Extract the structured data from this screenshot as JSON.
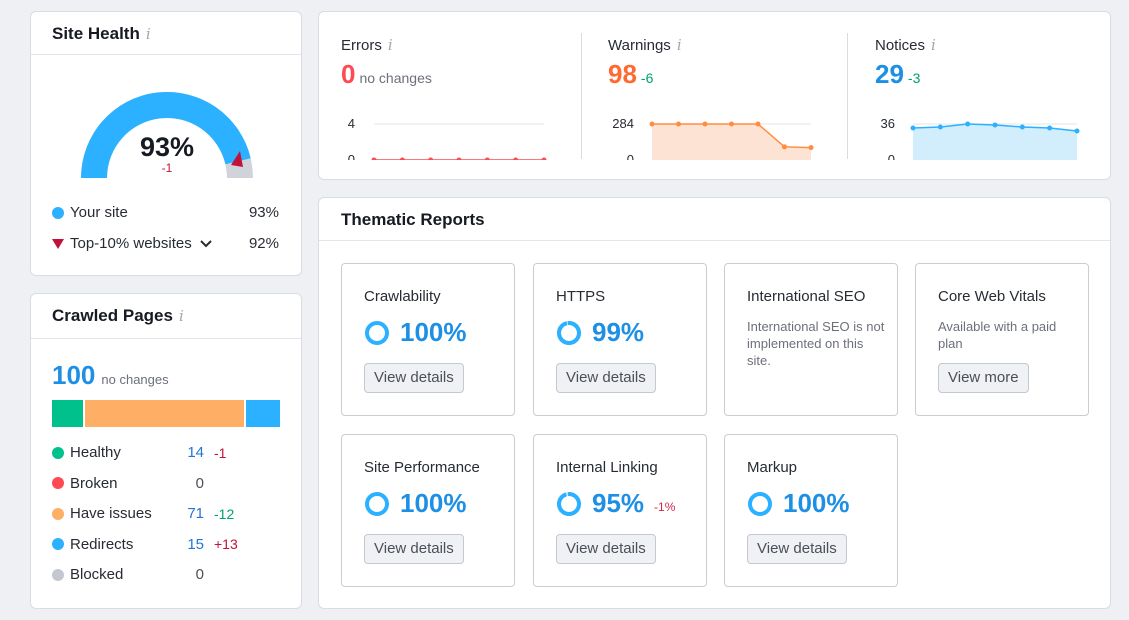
{
  "site_health": {
    "title": "Site Health",
    "percent": "93%",
    "change": "-1",
    "legend": [
      {
        "label": "Your site",
        "value": "93%",
        "color": "#2bb1ff"
      },
      {
        "label": "Top-10% websites",
        "value": "92%",
        "color": "#c1123a"
      }
    ]
  },
  "crawled_pages": {
    "title": "Crawled Pages",
    "total": "100",
    "total_change": "no changes",
    "bar": [
      {
        "name": "Healthy",
        "fraction": 0.14,
        "color": "#00c08b"
      },
      {
        "name": "Broken",
        "fraction": 0.0,
        "color": "#ff4953"
      },
      {
        "name": "Have issues",
        "fraction": 0.71,
        "color": "#ffae66"
      },
      {
        "name": "Redirects",
        "fraction": 0.15,
        "color": "#2bb1ff"
      }
    ],
    "rows": [
      {
        "label": "Healthy",
        "count": "14",
        "delta": "-1",
        "color": "#00c08b"
      },
      {
        "label": "Broken",
        "count": "0",
        "delta": "",
        "color": "#ff4953"
      },
      {
        "label": "Have issues",
        "count": "71",
        "delta": "-12",
        "color": "#ffae66"
      },
      {
        "label": "Redirects",
        "count": "15",
        "delta": "+13",
        "color": "#2bb1ff"
      },
      {
        "label": "Blocked",
        "count": "0",
        "delta": "",
        "color": "#c4c7cf"
      }
    ]
  },
  "issues": {
    "errors": {
      "label": "Errors",
      "value": "0",
      "change": "no changes",
      "y_max": "4",
      "y_min": "0",
      "color": "#ff4953"
    },
    "warnings": {
      "label": "Warnings",
      "value": "98",
      "change": "-6",
      "y_max": "284",
      "y_min": "0",
      "color": "#ff8c43"
    },
    "notices": {
      "label": "Notices",
      "value": "29",
      "change": "-3",
      "y_max": "36",
      "y_min": "0",
      "color": "#2bb1ff"
    }
  },
  "chart_data": [
    {
      "type": "line",
      "title": "Errors",
      "values": [
        0,
        0,
        0,
        0,
        0,
        0,
        0
      ],
      "ylim": [
        0,
        4
      ]
    },
    {
      "type": "area",
      "title": "Warnings",
      "values": [
        284,
        284,
        284,
        284,
        284,
        104,
        98
      ],
      "ylim": [
        0,
        284
      ]
    },
    {
      "type": "area",
      "title": "Notices",
      "values": [
        32,
        33,
        36,
        35,
        33,
        32,
        29
      ],
      "ylim": [
        0,
        36
      ]
    }
  ],
  "thematic": {
    "title": "Thematic Reports",
    "cards": [
      {
        "title": "Crawlability",
        "value": "100%",
        "delta": "",
        "desc": "",
        "button": "View details",
        "progress": 1.0
      },
      {
        "title": "HTTPS",
        "value": "99%",
        "delta": "",
        "desc": "",
        "button": "View details",
        "progress": 0.99
      },
      {
        "title": "International SEO",
        "value": "",
        "delta": "",
        "desc": "International SEO is not implemented on this site.",
        "button": "",
        "progress": 0
      },
      {
        "title": "Core Web Vitals",
        "value": "",
        "delta": "",
        "desc": "Available with a paid plan",
        "button": "View more",
        "progress": 0
      },
      {
        "title": "Site Performance",
        "value": "100%",
        "delta": "",
        "desc": "",
        "button": "View details",
        "progress": 1.0
      },
      {
        "title": "Internal Linking",
        "value": "95%",
        "delta": "-1%",
        "desc": "",
        "button": "View details",
        "progress": 0.95
      },
      {
        "title": "Markup",
        "value": "100%",
        "delta": "",
        "desc": "",
        "button": "View details",
        "progress": 1.0
      }
    ]
  },
  "icons": {
    "info": "i"
  }
}
